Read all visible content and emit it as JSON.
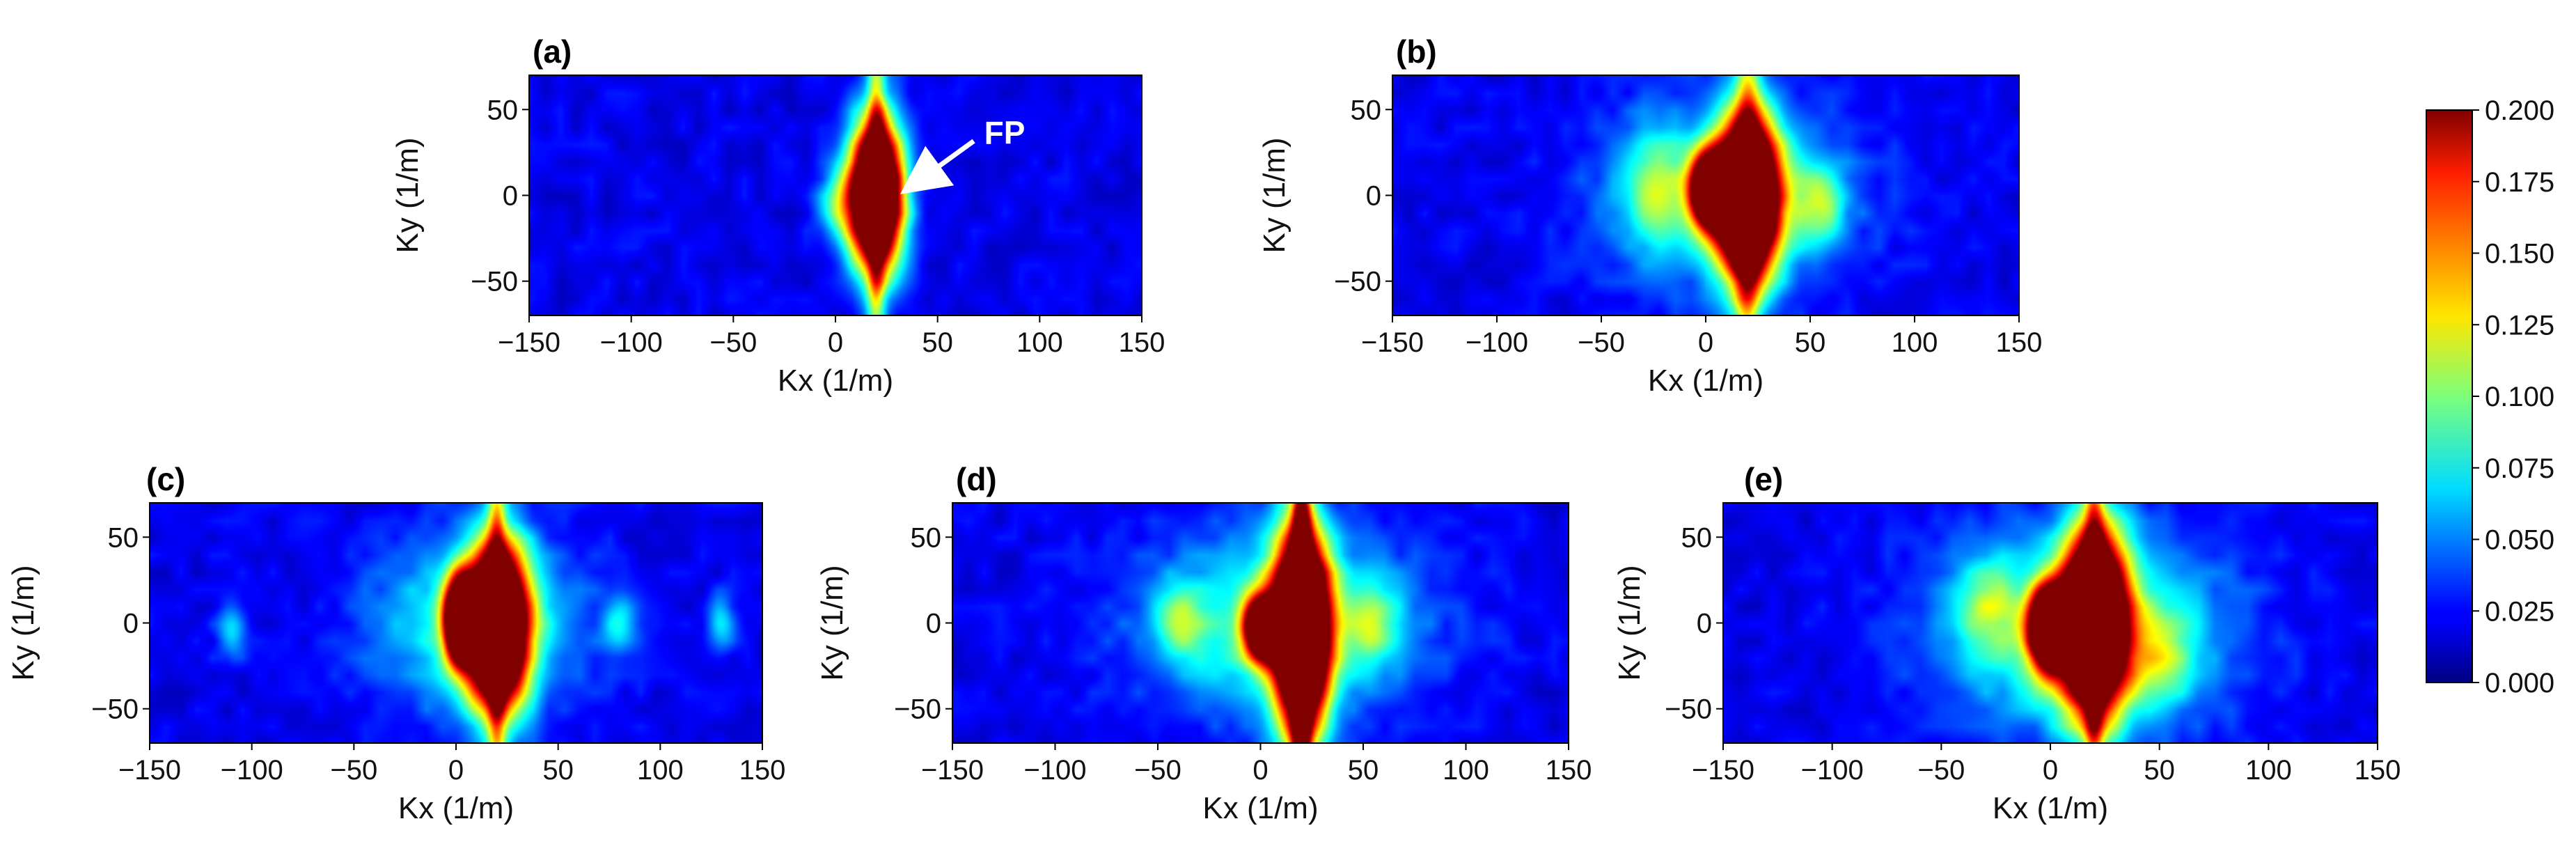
{
  "chart_data": {
    "type": "heatmap",
    "colorbar": {
      "min": 0.0,
      "max": 0.2,
      "ticks": [
        "0.000",
        "0.025",
        "0.050",
        "0.075",
        "0.100",
        "0.125",
        "0.150",
        "0.175",
        "0.200"
      ],
      "colormap": "jet"
    },
    "panels": [
      {
        "label": "(a)",
        "xlabel": "Kx (1/m)",
        "ylabel": "Ky (1/m)",
        "xlim": [
          -150,
          150
        ],
        "ylim": [
          -70,
          70
        ],
        "xticks": [
          "−150",
          "−100",
          "−50",
          "0",
          "50",
          "100",
          "150"
        ],
        "yticks": [
          "−50",
          "0",
          "50"
        ],
        "annotation": {
          "text": "FP",
          "points_to_kx": 20,
          "points_to_ky": 0
        },
        "features": [
          {
            "kind": "peak",
            "kx": 20,
            "ky": 0,
            "value": 0.2,
            "sx": 9,
            "sy": 30
          },
          {
            "kind": "vertical-streak",
            "kx": 20,
            "value": 0.08,
            "sx": 3
          },
          {
            "kind": "blob",
            "kx": 2,
            "ky": -5,
            "value": 0.06,
            "sx": 8,
            "sy": 15
          }
        ]
      },
      {
        "label": "(b)",
        "xlabel": "Kx (1/m)",
        "ylabel": "Ky (1/m)",
        "xlim": [
          -150,
          150
        ],
        "ylim": [
          -70,
          70
        ],
        "xticks": [
          "−150",
          "−100",
          "−50",
          "0",
          "50",
          "100",
          "150"
        ],
        "yticks": [
          "−50",
          "0",
          "50"
        ],
        "features": [
          {
            "kind": "peak",
            "kx": 20,
            "ky": -2,
            "value": 0.2,
            "sx": 10,
            "sy": 32
          },
          {
            "kind": "peak",
            "kx": 2,
            "ky": 3,
            "value": 0.16,
            "sx": 6,
            "sy": 14
          },
          {
            "kind": "vertical-streak",
            "kx": 20,
            "value": 0.07,
            "sx": 4
          },
          {
            "kind": "haze",
            "kx": 10,
            "ky": 0,
            "value": 0.07,
            "sx": 40,
            "sy": 35
          },
          {
            "kind": "blob",
            "kx": 55,
            "ky": -5,
            "value": 0.06,
            "sx": 8,
            "sy": 14
          },
          {
            "kind": "blob",
            "kx": -25,
            "ky": 5,
            "value": 0.045,
            "sx": 10,
            "sy": 25
          }
        ]
      },
      {
        "label": "(c)",
        "xlabel": "Kx (1/m)",
        "ylabel": "Ky (1/m)",
        "xlim": [
          -150,
          150
        ],
        "ylim": [
          -70,
          70
        ],
        "xticks": [
          "−150",
          "−100",
          "−50",
          "0",
          "50",
          "100",
          "150"
        ],
        "yticks": [
          "−50",
          "0",
          "50"
        ],
        "features": [
          {
            "kind": "peak",
            "kx": 20,
            "ky": -2,
            "value": 0.2,
            "sx": 10,
            "sy": 32
          },
          {
            "kind": "peak",
            "kx": 2,
            "ky": 2,
            "value": 0.17,
            "sx": 5,
            "sy": 16
          },
          {
            "kind": "vertical-streak",
            "kx": 20,
            "value": 0.08,
            "sx": 3
          },
          {
            "kind": "haze",
            "kx": 10,
            "ky": 0,
            "value": 0.07,
            "sx": 35,
            "sy": 35
          },
          {
            "kind": "blob",
            "kx": -110,
            "ky": -5,
            "value": 0.05,
            "sx": 5,
            "sy": 12
          },
          {
            "kind": "blob",
            "kx": 80,
            "ky": 0,
            "value": 0.045,
            "sx": 6,
            "sy": 12
          },
          {
            "kind": "blob",
            "kx": 130,
            "ky": 0,
            "value": 0.045,
            "sx": 5,
            "sy": 12
          }
        ]
      },
      {
        "label": "(d)",
        "xlabel": "Kx (1/m)",
        "ylabel": "Ky (1/m)",
        "xlim": [
          -150,
          150
        ],
        "ylim": [
          -70,
          70
        ],
        "xticks": [
          "−150",
          "−100",
          "−50",
          "0",
          "50",
          "100",
          "150"
        ],
        "yticks": [
          "−50",
          "0",
          "50"
        ],
        "features": [
          {
            "kind": "peak",
            "kx": 20,
            "ky": -5,
            "value": 0.2,
            "sx": 9,
            "sy": 42
          },
          {
            "kind": "peak",
            "kx": 1,
            "ky": -3,
            "value": 0.15,
            "sx": 6,
            "sy": 12
          },
          {
            "kind": "vertical-streak",
            "kx": 20,
            "value": 0.13,
            "sx": 3
          },
          {
            "kind": "haze",
            "kx": 10,
            "ky": 0,
            "value": 0.08,
            "sx": 45,
            "sy": 35
          },
          {
            "kind": "blob",
            "kx": -40,
            "ky": 0,
            "value": 0.05,
            "sx": 8,
            "sy": 15
          },
          {
            "kind": "blob",
            "kx": 55,
            "ky": 0,
            "value": 0.05,
            "sx": 8,
            "sy": 15
          }
        ]
      },
      {
        "label": "(e)",
        "xlabel": "Kx (1/m)",
        "ylabel": "Ky (1/m)",
        "xlim": [
          -150,
          150
        ],
        "ylim": [
          -70,
          70
        ],
        "xticks": [
          "−150",
          "−100",
          "−50",
          "0",
          "50",
          "100",
          "150"
        ],
        "yticks": [
          "−50",
          "0",
          "50"
        ],
        "features": [
          {
            "kind": "peak",
            "kx": 20,
            "ky": 0,
            "value": 0.2,
            "sx": 10,
            "sy": 36
          },
          {
            "kind": "peak",
            "kx": -1,
            "ky": -3,
            "value": 0.17,
            "sx": 6,
            "sy": 16
          },
          {
            "kind": "vertical-streak",
            "kx": 20,
            "value": 0.08,
            "sx": 3
          },
          {
            "kind": "haze",
            "kx": 15,
            "ky": -5,
            "value": 0.08,
            "sx": 45,
            "sy": 40
          },
          {
            "kind": "blob",
            "kx": -30,
            "ky": 10,
            "value": 0.05,
            "sx": 10,
            "sy": 20
          },
          {
            "kind": "blob",
            "kx": 50,
            "ky": -20,
            "value": 0.05,
            "sx": 10,
            "sy": 20
          }
        ]
      }
    ]
  }
}
